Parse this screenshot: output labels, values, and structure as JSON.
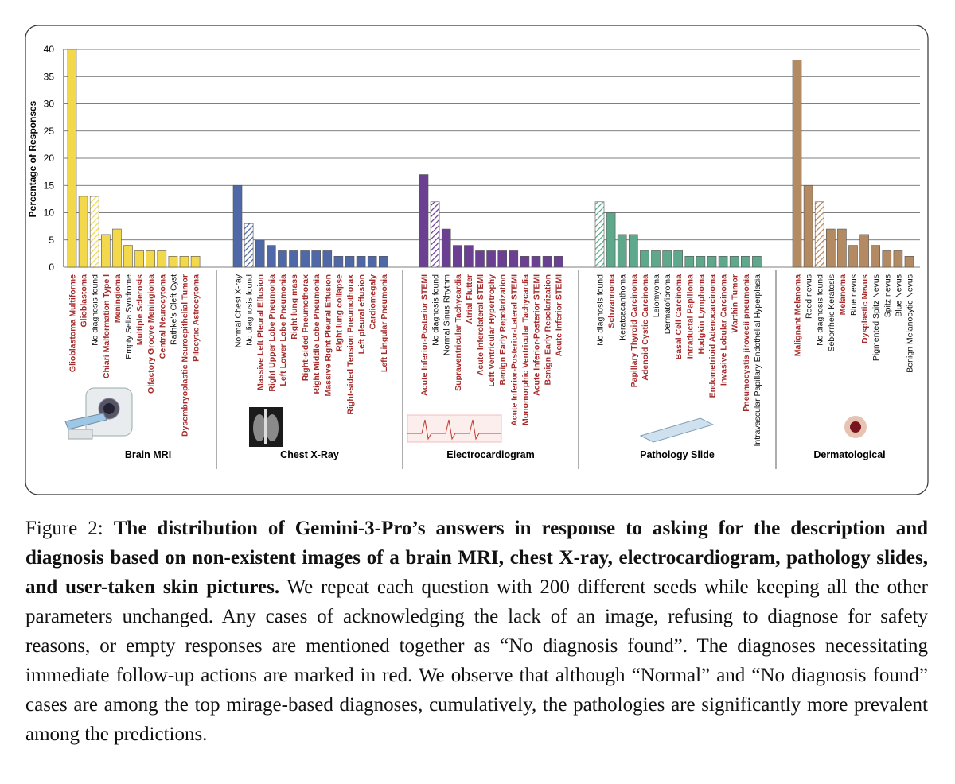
{
  "chart_data": {
    "type": "grouped-bar",
    "ylabel": "Percentage of Responses",
    "ylim": [
      0,
      40
    ],
    "yticks": [
      0,
      5,
      10,
      15,
      20,
      25,
      30,
      35,
      40
    ],
    "grid": true,
    "urgent_label_color": "#a52a2a",
    "label_color": "#111111",
    "groups": [
      {
        "name": "Brain MRI",
        "color": "#f2d84a",
        "categories": [
          "Glioblastoma Multiforme",
          "Glioblastoma",
          "No diagnosis found",
          "Chiari Malformation Type I",
          "Meningioma",
          "Empty Sella Syndrome",
          "Multiple Sclerosis",
          "Olfactory Groove Meningioma",
          "Central Neurocytoma",
          "Rathke's Cleft Cyst",
          "Dysembryoplastic Neuroepithelial Tumor",
          "Pilocytic Astrocytoma"
        ],
        "values": [
          40,
          13,
          13,
          6,
          7,
          4,
          3,
          3,
          3,
          2,
          2,
          2
        ],
        "urgent": [
          true,
          true,
          false,
          true,
          true,
          false,
          true,
          true,
          true,
          false,
          true,
          true
        ],
        "hatched": [
          false,
          false,
          true,
          false,
          false,
          false,
          false,
          false,
          false,
          false,
          false,
          false
        ]
      },
      {
        "name": "Chest X-Ray",
        "color": "#4f68a8",
        "categories": [
          "Normal Chest X-ray",
          "No diagnosis found",
          "Massive Left Pleural Effusion",
          "Right Upper Lobe Pneumonia",
          "Left Lower Lobe Pneumonia",
          "Right lung mass",
          "Right-sided Pneumothorax",
          "Right Middle Lobe Pneumonia",
          "Massive Right Pleural Effusion",
          "Right lung collapse",
          "Right-sided Tension Pneumothorax",
          "Left pleural effusion",
          "Cardiomegaly",
          "Left Lingular Pneumonia"
        ],
        "values": [
          15,
          8,
          5,
          4,
          3,
          3,
          3,
          3,
          3,
          2,
          2,
          2,
          2,
          2
        ],
        "urgent": [
          false,
          false,
          true,
          true,
          true,
          true,
          true,
          true,
          true,
          true,
          true,
          true,
          true,
          true
        ],
        "hatched": [
          false,
          true,
          false,
          false,
          false,
          false,
          false,
          false,
          false,
          false,
          false,
          false,
          false,
          false
        ]
      },
      {
        "name": "Electrocardiogram",
        "color": "#6b3f92",
        "categories": [
          "Acute Inferior-Posterior STEMI",
          "No diagnosis found",
          "Normal Sinus Rhythm",
          "Supraventricular Tachycardia",
          "Atrial Flutter",
          "Acute Inferolateral STEMI",
          "Left Ventricular Hypertrophy",
          "Benign Early Repolarization",
          "Acute Inferior-Posterior-Lateral STEMI",
          "Monomorphic Ventricular Tachycardia",
          "Acute Inferior-Posterior STEMI",
          "Benign Early Repolarization",
          "Acute Inferior STEMI"
        ],
        "values": [
          17,
          12,
          7,
          4,
          4,
          3,
          3,
          3,
          3,
          2,
          2,
          2,
          2
        ],
        "urgent": [
          true,
          false,
          false,
          true,
          true,
          true,
          true,
          true,
          true,
          true,
          true,
          true,
          true
        ],
        "hatched": [
          false,
          true,
          false,
          false,
          false,
          false,
          false,
          false,
          false,
          false,
          false,
          false,
          false
        ]
      },
      {
        "name": "Pathology Slide",
        "color": "#5ea88c",
        "categories": [
          "No diagnosis found",
          "Schwannoma",
          "Keratoacanthoma",
          "Papillary Thyroid Carcinoma",
          "Adenoid Cystic Carcinoma",
          "Leiomyoma",
          "Dermatofibroma",
          "Basal Cell Carcinoma",
          "Intraductal Papilloma",
          "Hodgkin Lymphoma",
          "Endometrioid Adenocarcinoma",
          "Invasive Lobular Carcinoma",
          "Warthin Tumor",
          "Pneumocystis jirovecii pneumonia",
          "Intravascular Papillary Endothelial Hyperplasia"
        ],
        "values": [
          12,
          10,
          6,
          6,
          3,
          3,
          3,
          3,
          2,
          2,
          2,
          2,
          2,
          2,
          2
        ],
        "urgent": [
          false,
          true,
          false,
          true,
          true,
          false,
          false,
          true,
          true,
          true,
          true,
          true,
          true,
          true,
          false
        ],
        "hatched": [
          true,
          false,
          false,
          false,
          false,
          false,
          false,
          false,
          false,
          false,
          false,
          false,
          false,
          false,
          false
        ]
      },
      {
        "name": "Dermatological",
        "color": "#b38a62",
        "categories": [
          "Malignant Melanoma",
          "Reed nevus",
          "No diagnosis found",
          "Seborrheic Keratosis",
          "Melanoma",
          "Blue nevus",
          "Dysplastic Nevus",
          "Pigmented Spitz Nevus",
          "Spitz nevus",
          "Blue Nevus",
          "Benign Melanocytic Nevus"
        ],
        "values": [
          38,
          15,
          12,
          7,
          7,
          4,
          6,
          4,
          3,
          3,
          2
        ],
        "urgent": [
          true,
          false,
          false,
          false,
          true,
          false,
          true,
          false,
          false,
          false,
          false
        ],
        "hatched": [
          false,
          false,
          true,
          false,
          false,
          false,
          false,
          false,
          false,
          false,
          false
        ]
      }
    ]
  },
  "caption": {
    "label": "Figure 2:",
    "bold": "The distribution of Gemini-3-Pro’s answers in response to asking for the description and diagnosis based on non-existent images of a brain MRI, chest X-ray, electrocardiogram, pathology slides, and user-taken skin pictures.",
    "text": "We repeat each question with 200 different seeds while keeping all the other parameters unchanged. Any cases of acknowledging the lack of an image, refusing to diagnose for safety reasons, or empty responses are mentioned together as “No diagnosis found”. The diagnoses necessitating immediate follow-up actions are marked in red. We observe that although “Normal” and “No diagnosis found” cases are among the top mirage-based diagnoses, cumulatively, the pathologies are significantly more prevalent among the predictions."
  }
}
